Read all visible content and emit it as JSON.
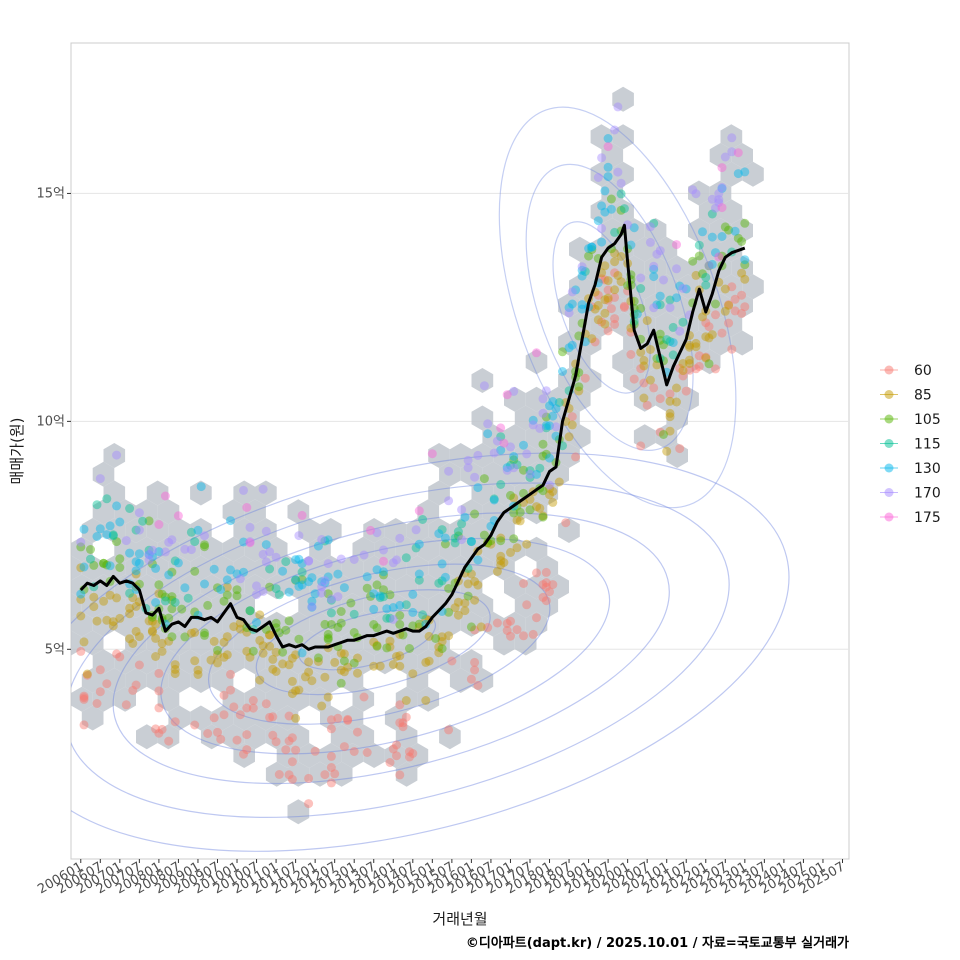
{
  "caption": "©디아파트(dapt.kr) / 2025.10.01 / 자료=국토교통부 실거래가",
  "chart_data": {
    "type": "scatter",
    "xlabel": "거래년월",
    "ylabel": "매매가(원)",
    "x_tick_labels": [
      "200601",
      "200607",
      "200701",
      "200707",
      "200801",
      "200807",
      "200901",
      "200907",
      "201001",
      "201007",
      "201101",
      "201107",
      "201201",
      "201207",
      "201301",
      "201307",
      "201401",
      "201407",
      "201501",
      "201507",
      "201601",
      "201607",
      "201701",
      "201707",
      "201801",
      "201807",
      "201901",
      "201907",
      "202001",
      "202007",
      "202101",
      "202107",
      "202201",
      "202207",
      "202301",
      "202307",
      "202401",
      "202407",
      "202501",
      "202507"
    ],
    "y_ticks": [
      {
        "value": 5,
        "label": "5억"
      },
      {
        "value": 10,
        "label": "10억"
      },
      {
        "value": 15,
        "label": "15억"
      }
    ],
    "ylim": [
      0.4,
      18.3
    ],
    "x_range_months": [
      -3,
      236
    ],
    "grid": true,
    "legend_placement": "right",
    "legend": [
      {
        "label": "60",
        "color": "#F8766D"
      },
      {
        "label": "85",
        "color": "#C49A00"
      },
      {
        "label": "105",
        "color": "#53B400"
      },
      {
        "label": "115",
        "color": "#00C094"
      },
      {
        "label": "130",
        "color": "#00B6EB"
      },
      {
        "label": "170",
        "color": "#A58AFF"
      },
      {
        "label": "175",
        "color": "#FB61D7"
      }
    ],
    "median_line": {
      "color": "#000000",
      "points": [
        [
          0,
          6.3
        ],
        [
          2,
          6.45
        ],
        [
          4,
          6.4
        ],
        [
          6,
          6.5
        ],
        [
          8,
          6.4
        ],
        [
          10,
          6.6
        ],
        [
          12,
          6.45
        ],
        [
          14,
          6.5
        ],
        [
          16,
          6.45
        ],
        [
          18,
          6.3
        ],
        [
          20,
          5.8
        ],
        [
          22,
          5.75
        ],
        [
          24,
          5.9
        ],
        [
          26,
          5.4
        ],
        [
          28,
          5.55
        ],
        [
          30,
          5.6
        ],
        [
          32,
          5.5
        ],
        [
          34,
          5.7
        ],
        [
          36,
          5.7
        ],
        [
          38,
          5.65
        ],
        [
          40,
          5.7
        ],
        [
          42,
          5.6
        ],
        [
          44,
          5.8
        ],
        [
          46,
          6.0
        ],
        [
          48,
          5.7
        ],
        [
          50,
          5.65
        ],
        [
          52,
          5.45
        ],
        [
          54,
          5.4
        ],
        [
          56,
          5.5
        ],
        [
          58,
          5.6
        ],
        [
          60,
          5.3
        ],
        [
          62,
          5.05
        ],
        [
          64,
          5.1
        ],
        [
          66,
          5.05
        ],
        [
          68,
          5.1
        ],
        [
          70,
          5.0
        ],
        [
          72,
          5.05
        ],
        [
          74,
          5.05
        ],
        [
          76,
          5.05
        ],
        [
          78,
          5.1
        ],
        [
          80,
          5.15
        ],
        [
          82,
          5.2
        ],
        [
          84,
          5.2
        ],
        [
          86,
          5.25
        ],
        [
          88,
          5.3
        ],
        [
          90,
          5.3
        ],
        [
          92,
          5.35
        ],
        [
          94,
          5.4
        ],
        [
          96,
          5.35
        ],
        [
          98,
          5.4
        ],
        [
          100,
          5.45
        ],
        [
          102,
          5.4
        ],
        [
          104,
          5.4
        ],
        [
          106,
          5.5
        ],
        [
          108,
          5.7
        ],
        [
          110,
          5.85
        ],
        [
          112,
          6.0
        ],
        [
          114,
          6.2
        ],
        [
          116,
          6.5
        ],
        [
          118,
          6.8
        ],
        [
          120,
          7.0
        ],
        [
          122,
          7.2
        ],
        [
          124,
          7.3
        ],
        [
          126,
          7.5
        ],
        [
          128,
          7.8
        ],
        [
          130,
          8.0
        ],
        [
          132,
          8.1
        ],
        [
          134,
          8.2
        ],
        [
          136,
          8.3
        ],
        [
          138,
          8.4
        ],
        [
          140,
          8.5
        ],
        [
          142,
          8.6
        ],
        [
          144,
          8.9
        ],
        [
          146,
          9.0
        ],
        [
          148,
          10.0
        ],
        [
          150,
          10.5
        ],
        [
          152,
          11.0
        ],
        [
          154,
          11.8
        ],
        [
          156,
          12.6
        ],
        [
          158,
          13.0
        ],
        [
          160,
          13.6
        ],
        [
          162,
          13.8
        ],
        [
          164,
          13.9
        ],
        [
          166,
          14.1
        ],
        [
          167,
          14.3
        ],
        [
          168,
          13.5
        ],
        [
          170,
          12.0
        ],
        [
          172,
          11.6
        ],
        [
          174,
          11.7
        ],
        [
          176,
          12.0
        ],
        [
          178,
          11.4
        ],
        [
          180,
          10.8
        ],
        [
          182,
          11.2
        ],
        [
          184,
          11.5
        ],
        [
          186,
          11.8
        ],
        [
          188,
          12.4
        ],
        [
          190,
          12.9
        ],
        [
          192,
          12.4
        ],
        [
          194,
          12.8
        ],
        [
          196,
          13.3
        ],
        [
          198,
          13.6
        ],
        [
          200,
          13.7
        ],
        [
          202,
          13.75
        ],
        [
          204,
          13.8
        ]
      ]
    }
  }
}
